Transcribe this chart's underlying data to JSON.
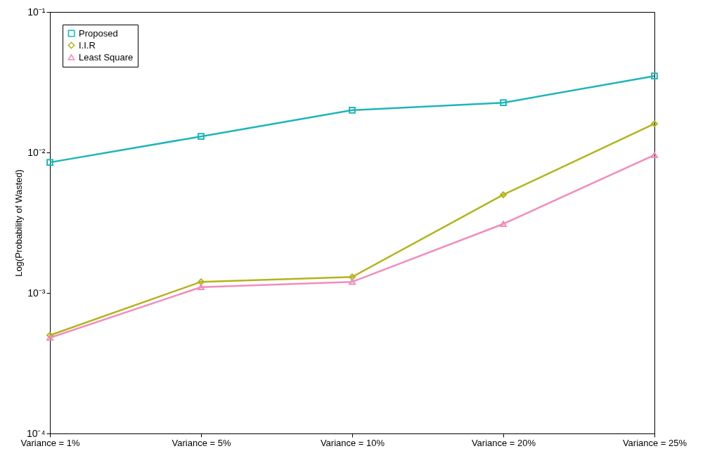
{
  "chart_data": {
    "type": "line",
    "ylabel": "Log(Probability of Wasted)",
    "categories": [
      "Variance = 1%",
      "Variance = 5%",
      "Variance = 10%",
      "Variance = 20%",
      "Variance = 25%"
    ],
    "series": [
      {
        "name": "Proposed",
        "color": "#1fb5b8",
        "marker": "square",
        "values": [
          0.0085,
          0.013,
          0.02,
          0.0226,
          0.035
        ]
      },
      {
        "name": "I.I.R",
        "color": "#b2b41c",
        "marker": "diamond",
        "values": [
          0.0005,
          0.0012,
          0.0013,
          0.005,
          0.016
        ]
      },
      {
        "name": "Least Square",
        "color": "#f28cbc",
        "marker": "triangle",
        "values": [
          0.00048,
          0.0011,
          0.0012,
          0.0031,
          0.0096
        ]
      }
    ],
    "log": true,
    "ylim": [
      0.0001,
      0.1
    ],
    "yticks": [
      {
        "value": 0.0001,
        "label": "10⁻⁴"
      },
      {
        "value": 0.001,
        "label": "10⁻³"
      },
      {
        "value": 0.01,
        "label": "10⁻²"
      },
      {
        "value": 0.1,
        "label": "10⁻¹"
      }
    ],
    "grid": false,
    "legend": "top left",
    "line_style": "solid"
  }
}
